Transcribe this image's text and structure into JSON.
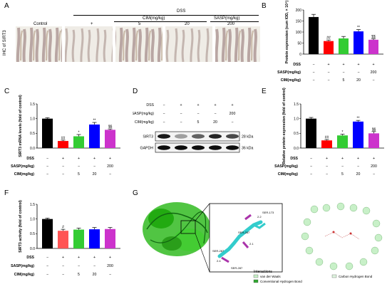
{
  "panels": {
    "A": {
      "label": "A",
      "ylabel": "IHC of SIRT3",
      "dss": "DSS",
      "cim": "CIM(mg/kg)",
      "sasp": "SASP(mg/kg)",
      "columns": [
        "Control",
        "+",
        "5",
        "20",
        "200"
      ]
    },
    "B": {
      "label": "B",
      "chart_data": {
        "type": "bar",
        "ylabel": "Protein expression (sum IOD, × 10⁴)",
        "yticks": [
          "0",
          "50",
          "100",
          "150",
          "200"
        ],
        "ylim": [
          0,
          200
        ],
        "values": [
          168,
          59,
          71,
          103,
          65
        ],
        "errors": [
          12,
          5,
          9,
          8,
          5
        ],
        "colors": [
          "#000000",
          "#ff0000",
          "#33cc33",
          "#0000ff",
          "#cc33cc"
        ],
        "sig": [
          "",
          "##",
          "",
          "**",
          "$$"
        ],
        "rows": [
          {
            "label": "DSS",
            "marks": [
              "−",
              "+",
              "+",
              "+",
              "+"
            ]
          },
          {
            "label": "SASP(mg/kg)",
            "marks": [
              "−",
              "−",
              "−",
              "−",
              "200"
            ]
          },
          {
            "label": "CIM(mg/kg)",
            "marks": [
              "−",
              "−",
              "5",
              "20",
              "−"
            ]
          }
        ]
      }
    },
    "C": {
      "label": "C",
      "chart_data": {
        "type": "bar",
        "ylabel": "SIRT3 mRNA levels (fold of control)",
        "yticks": [
          "0.0",
          "0.5",
          "1.0",
          "1.5"
        ],
        "ylim": [
          0,
          1.5
        ],
        "values": [
          1.0,
          0.24,
          0.4,
          0.8,
          0.62
        ],
        "errors": [
          0.03,
          0.03,
          0.06,
          0.07,
          0.03
        ],
        "colors": [
          "#000000",
          "#ff0000",
          "#33cc33",
          "#0000ff",
          "#cc33cc"
        ],
        "sig": [
          "",
          "##",
          "*",
          "**",
          "$$"
        ],
        "rows": [
          {
            "label": "DSS",
            "marks": [
              "−",
              "+",
              "+",
              "+",
              "+"
            ]
          },
          {
            "label": "SASP(mg/kg)",
            "marks": [
              "−",
              "−",
              "−",
              "−",
              "200"
            ]
          },
          {
            "label": "CIM(mg/kg)",
            "marks": [
              "−",
              "−",
              "5",
              "20",
              "−"
            ]
          }
        ]
      }
    },
    "D": {
      "label": "D",
      "rows": [
        {
          "label": "DSS",
          "marks": [
            "−",
            "+",
            "+",
            "+",
            "+"
          ]
        },
        {
          "label": "SASP(mg/kg)",
          "marks": [
            "−",
            "−",
            "−",
            "−",
            "200"
          ]
        },
        {
          "label": "CIM(mg/kg)",
          "marks": [
            "−",
            "−",
            "5",
            "20",
            "−"
          ]
        }
      ],
      "bands": [
        {
          "name": "SIRT3",
          "size": "28 kDa",
          "intensity": [
            0.9,
            0.35,
            0.6,
            0.85,
            0.7
          ]
        },
        {
          "name": "GAPDH",
          "size": "36 kDa",
          "intensity": [
            0.95,
            0.95,
            0.95,
            0.95,
            0.95
          ]
        }
      ]
    },
    "E": {
      "label": "E",
      "chart_data": {
        "type": "bar",
        "ylabel": "Relative protein expression (fold of control)",
        "yticks": [
          "0.0",
          "0.5",
          "1.0",
          "1.5"
        ],
        "ylim": [
          0,
          1.5
        ],
        "values": [
          1.0,
          0.26,
          0.43,
          0.9,
          0.5
        ],
        "errors": [
          0.04,
          0.03,
          0.04,
          0.04,
          0.06
        ],
        "colors": [
          "#000000",
          "#ff0000",
          "#33cc33",
          "#0000ff",
          "#cc33cc"
        ],
        "sig": [
          "",
          "##",
          "*",
          "**",
          "$$"
        ],
        "rows": [
          {
            "label": "DSS",
            "marks": [
              "−",
              "+",
              "+",
              "+",
              "+"
            ]
          },
          {
            "label": "SASP(mg/kg)",
            "marks": [
              "−",
              "−",
              "−",
              "−",
              "200"
            ]
          },
          {
            "label": "CIM(mg/kg)",
            "marks": [
              "−",
              "−",
              "5",
              "20",
              "−"
            ]
          }
        ]
      }
    },
    "F": {
      "label": "F",
      "chart_data": {
        "type": "bar",
        "ylabel": "SIRT3 activity (fold of control)",
        "yticks": [
          "0.0",
          "0.5",
          "1.0",
          "1.5"
        ],
        "ylim": [
          0,
          1.5
        ],
        "values": [
          1.0,
          0.6,
          0.64,
          0.65,
          0.66
        ],
        "errors": [
          0.03,
          0.05,
          0.05,
          0.06,
          0.05
        ],
        "colors": [
          "#000000",
          "#ff5555",
          "#33cc33",
          "#0000ff",
          "#cc33cc"
        ],
        "sig": [
          "",
          "#",
          "",
          "",
          ""
        ],
        "rows": [
          {
            "label": "DSS",
            "marks": [
              "−",
              "+",
              "+",
              "+",
              "+"
            ]
          },
          {
            "label": "SASP(mg/kg)",
            "marks": [
              "−",
              "−",
              "−",
              "−",
              "200"
            ]
          },
          {
            "label": "CIM(mg/kg)",
            "marks": [
              "−",
              "−",
              "5",
              "20",
              "−"
            ]
          }
        ]
      }
    },
    "G": {
      "label": "G",
      "residues": [
        "SER-173",
        "SER-287",
        "SER-287",
        "SER-287"
      ],
      "distances": [
        "2.2",
        "2.1",
        "2.4"
      ],
      "legend_title": "Interactions",
      "legend": [
        {
          "label": "van der Waals",
          "color": "#c8f0c8"
        },
        {
          "label": "Conventional Hydrogen Bond",
          "color": "#33aa33"
        },
        {
          "label": "Carbon Hydrogen Bond",
          "color": "#e0f5e0"
        }
      ]
    }
  }
}
